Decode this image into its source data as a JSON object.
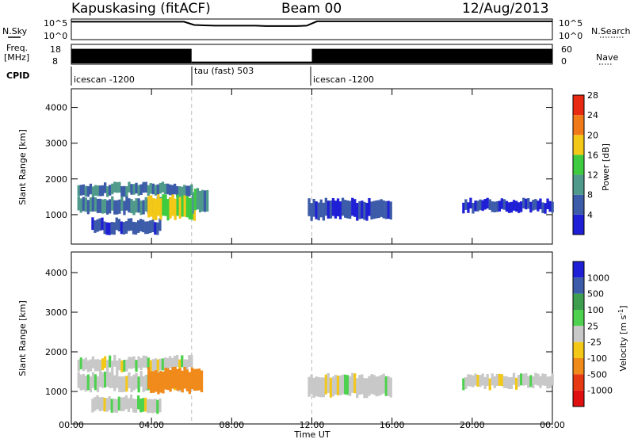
{
  "header": {
    "station": "Kapuskasing (fitACF)",
    "beam": "Beam 00",
    "date": "12/Aug/2013"
  },
  "chart_data": [
    {
      "type": "line",
      "panel": "noise",
      "ylabel_left": "N.Sky",
      "ylabel_right": "N.Search",
      "left_ticks": [
        "10^5",
        "10^0"
      ],
      "right_ticks": [
        "10^5",
        "10^0"
      ],
      "x_range_hours": [
        0,
        24
      ],
      "series": [
        {
          "values": [
            4.7,
            4.7,
            4.7,
            4.7,
            4.7,
            4.7,
            4.7,
            4.7,
            4.7,
            4.7,
            4.7,
            4.7,
            3.8,
            3.7,
            3.6,
            3.6,
            3.6,
            3.6,
            3.6,
            3.5,
            3.5,
            3.5,
            3.5,
            3.6,
            4.8,
            4.8,
            4.8,
            4.8,
            4.8,
            4.8,
            4.8,
            4.8,
            4.8,
            4.8,
            4.8,
            4.8,
            4.8,
            4.8,
            4.8,
            4.8,
            4.8,
            4.8,
            4.8,
            4.8,
            4.8,
            4.8,
            4.8,
            4.8
          ]
        },
        {
          "values": []
        }
      ]
    },
    {
      "type": "bar",
      "panel": "frequency",
      "ylabel_left": "Freq.\n[MHz]",
      "ylabel_right": "Nave",
      "left_ticks": [
        "18",
        "8"
      ],
      "right_ticks": [
        "60",
        "0"
      ],
      "blocks": [
        {
          "start": 0.0,
          "end": 6.0,
          "level": 0.8
        },
        {
          "start": 6.0,
          "end": 12.0,
          "level": 0.1
        },
        {
          "start": 12.0,
          "end": 24.0,
          "level": 0.8
        }
      ]
    },
    {
      "type": "table",
      "panel": "cpid",
      "label": "CPID",
      "segments": [
        {
          "start": 0,
          "end": 6,
          "name": "icescan -1200"
        },
        {
          "start": 6,
          "end": 12,
          "name": "tau (fast) 503"
        },
        {
          "start": 12,
          "end": 24,
          "name": "icescan -1200"
        }
      ]
    },
    {
      "type": "heatmap",
      "panel": "power",
      "ylabel": "Slant Range [km]",
      "ylim": [
        200,
        4500
      ],
      "yticks": [
        1000,
        2000,
        3000,
        4000
      ],
      "colorbar_label": "Power [dB]",
      "colorbar_ticks": [
        4,
        8,
        12,
        16,
        20,
        24,
        28
      ],
      "colorbar_colors": [
        "#1f1fd6",
        "#3c5ba8",
        "#4f9a8a",
        "#3ecb40",
        "#f4c817",
        "#f07a1a",
        "#e82a12"
      ],
      "features": [
        {
          "t0": 0.3,
          "t1": 6.0,
          "r0": 1550,
          "r1": 1850,
          "power": 10
        },
        {
          "t0": 0.3,
          "t1": 5.5,
          "r0": 1050,
          "r1": 1450,
          "power": 9
        },
        {
          "t0": 1.0,
          "t1": 4.5,
          "r0": 500,
          "r1": 850,
          "power": 7
        },
        {
          "t0": 3.8,
          "t1": 6.2,
          "r0": 900,
          "r1": 1500,
          "power": 18
        },
        {
          "t0": 6.0,
          "t1": 6.8,
          "r0": 1100,
          "r1": 1700,
          "power": 12
        },
        {
          "t0": 11.8,
          "t1": 16.0,
          "r0": 900,
          "r1": 1400,
          "power": 6
        },
        {
          "t0": 19.5,
          "t1": 24.0,
          "r0": 1100,
          "r1": 1400,
          "power": 6
        }
      ]
    },
    {
      "type": "heatmap",
      "panel": "velocity",
      "ylabel": "Slant Range [km]",
      "ylim": [
        200,
        4500
      ],
      "yticks": [
        1000,
        2000,
        3000,
        4000
      ],
      "colorbar_label": "Velocity [m s",
      "colorbar_label_sup": "-1",
      "colorbar_ticks": [
        "1000",
        "500",
        "100",
        "25",
        "-25",
        "-100",
        "-500",
        "-1000"
      ],
      "colorbar_colors": [
        "#1f1fd6",
        "#3c5ba8",
        "#3e9e50",
        "#4ed14e",
        "#c8c8c8",
        "#f4c817",
        "#f08a1a",
        "#e83a12",
        "#e01010"
      ],
      "features": [
        {
          "t0": 0.3,
          "t1": 6.0,
          "r0": 1550,
          "r1": 1850,
          "velocity": 0
        },
        {
          "t0": 0.3,
          "t1": 5.5,
          "r0": 1050,
          "r1": 1450,
          "velocity": 0
        },
        {
          "t0": 1.0,
          "t1": 4.5,
          "r0": 500,
          "r1": 850,
          "velocity": 0
        },
        {
          "t0": 3.8,
          "t1": 6.5,
          "r0": 1000,
          "r1": 1550,
          "velocity": -300
        },
        {
          "t0": 11.8,
          "t1": 16.0,
          "r0": 900,
          "r1": 1400,
          "velocity": 0
        },
        {
          "t0": 19.5,
          "t1": 24.0,
          "r0": 1100,
          "r1": 1400,
          "velocity": 0
        }
      ]
    }
  ],
  "x_axis": {
    "label": "Time UT",
    "ticks": [
      "00:00",
      "04:00",
      "08:00",
      "12:00",
      "16:00",
      "20:00",
      "00:00"
    ]
  }
}
